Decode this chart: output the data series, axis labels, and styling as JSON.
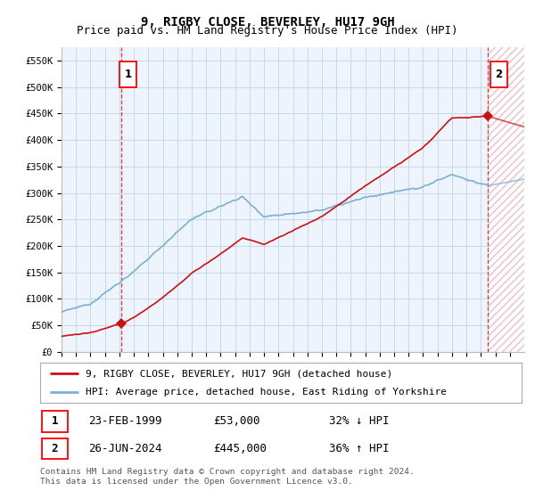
{
  "title": "9, RIGBY CLOSE, BEVERLEY, HU17 9GH",
  "subtitle": "Price paid vs. HM Land Registry's House Price Index (HPI)",
  "ylim": [
    0,
    575000
  ],
  "yticks": [
    0,
    50000,
    100000,
    150000,
    200000,
    250000,
    300000,
    350000,
    400000,
    450000,
    500000,
    550000
  ],
  "ytick_labels": [
    "£0",
    "£50K",
    "£100K",
    "£150K",
    "£200K",
    "£250K",
    "£300K",
    "£350K",
    "£400K",
    "£450K",
    "£500K",
    "£550K"
  ],
  "xlim_start": 1995.0,
  "xlim_end": 2027.0,
  "hpi_color": "#7ab0d4",
  "property_color": "#cc1111",
  "hatch_color": "#e8b8b8",
  "chart_bg": "#eef4fb",
  "background_color": "#ffffff",
  "grid_color": "#c8d8e8",
  "sale1_year": 1999.14,
  "sale1_price": 53000,
  "sale2_year": 2024.48,
  "sale2_price": 445000,
  "legend_label1": "9, RIGBY CLOSE, BEVERLEY, HU17 9GH (detached house)",
  "legend_label2": "HPI: Average price, detached house, East Riding of Yorkshire",
  "table_row1": [
    "1",
    "23-FEB-1999",
    "£53,000",
    "32% ↓ HPI"
  ],
  "table_row2": [
    "2",
    "26-JUN-2024",
    "£445,000",
    "36% ↑ HPI"
  ],
  "footnote": "Contains HM Land Registry data © Crown copyright and database right 2024.\nThis data is licensed under the Open Government Licence v3.0.",
  "title_fontsize": 10,
  "subtitle_fontsize": 9,
  "tick_fontsize": 7.5,
  "hatch_start": 2024.48,
  "hatch_end": 2027.0
}
